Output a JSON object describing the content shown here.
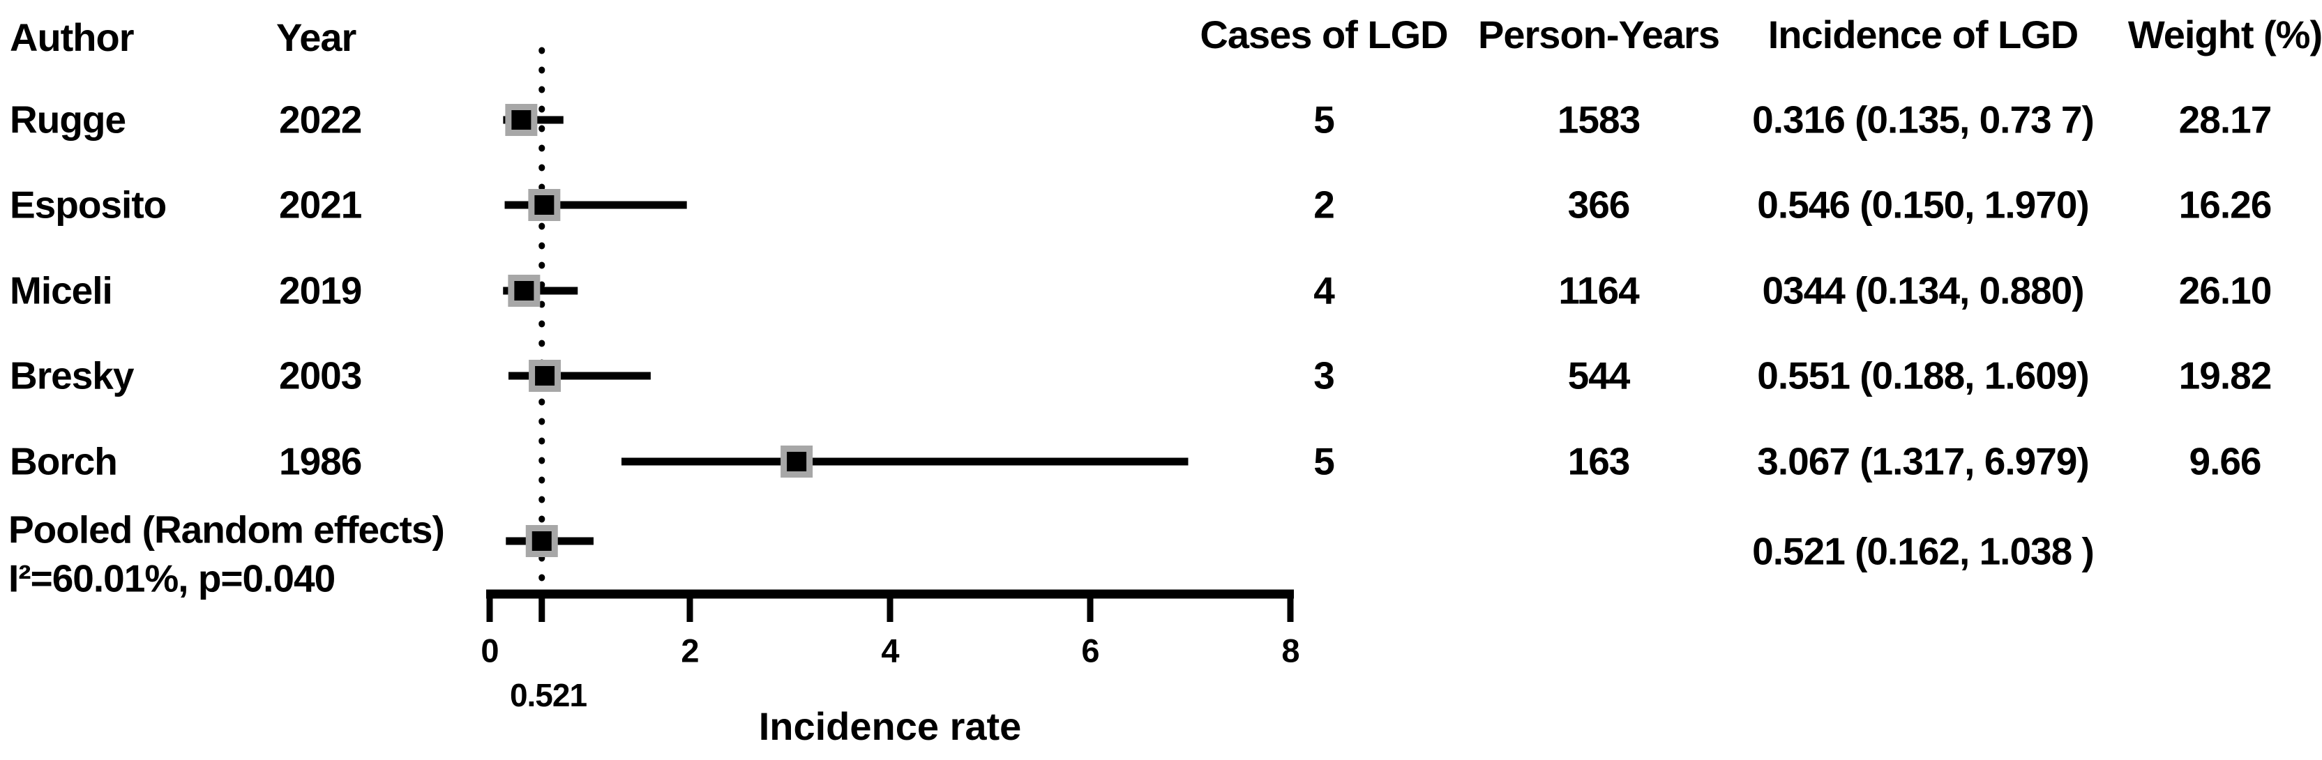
{
  "table": {
    "headers": {
      "author": "Author",
      "year": "Year",
      "cases": "Cases of LGD",
      "person_years": "Person-Years",
      "incidence": "Incidence of LGD",
      "weight": "Weight (%)"
    }
  },
  "chart_data": {
    "type": "forest",
    "title": "",
    "xlabel": "Incidence rate",
    "xlim": [
      0,
      8
    ],
    "xticks": [
      0,
      2,
      4,
      6,
      8
    ],
    "pooled_reference_line_x": 0.521,
    "pooled_tick_label": "0.521",
    "marker_fill": "#a7a7a7",
    "marker_inner": "#000000",
    "studies": [
      {
        "author": "Rugge",
        "year": "2022",
        "cases": "5",
        "person_years": "1583",
        "estimate": 0.316,
        "ci_low": 0.135,
        "ci_high": 0.737,
        "incidence_label": "0.316  (0.135,  0.73 7)",
        "weight": "28.17"
      },
      {
        "author": "Esposito",
        "year": "2021",
        "cases": "2",
        "person_years": "366",
        "estimate": 0.546,
        "ci_low": 0.15,
        "ci_high": 1.97,
        "incidence_label": "0.546  (0.150,  1.970)",
        "weight": "16.26"
      },
      {
        "author": "Miceli",
        "year": "2019",
        "cases": "4",
        "person_years": "1164",
        "estimate": 0.344,
        "ci_low": 0.134,
        "ci_high": 0.88,
        "incidence_label": "0344  (0.134,  0.880)",
        "weight": "26.10"
      },
      {
        "author": "Bresky",
        "year": "2003",
        "cases": "3",
        "person_years": "544",
        "estimate": 0.551,
        "ci_low": 0.188,
        "ci_high": 1.609,
        "incidence_label": "0.551  (0.188,  1.609)",
        "weight": "19.82"
      },
      {
        "author": "Borch",
        "year": "1986",
        "cases": "5",
        "person_years": "163",
        "estimate": 3.067,
        "ci_low": 1.317,
        "ci_high": 6.979,
        "incidence_label": "3.067  (1.317,  6.979)",
        "weight": "9.66"
      }
    ],
    "pooled": {
      "label": "Pooled (Random effects)",
      "heterogeneity": "I²=60.01%, p=0.040",
      "estimate": 0.521,
      "ci_low": 0.162,
      "ci_high": 1.038,
      "incidence_label": "0.521  (0.162,  1.038 )"
    }
  }
}
